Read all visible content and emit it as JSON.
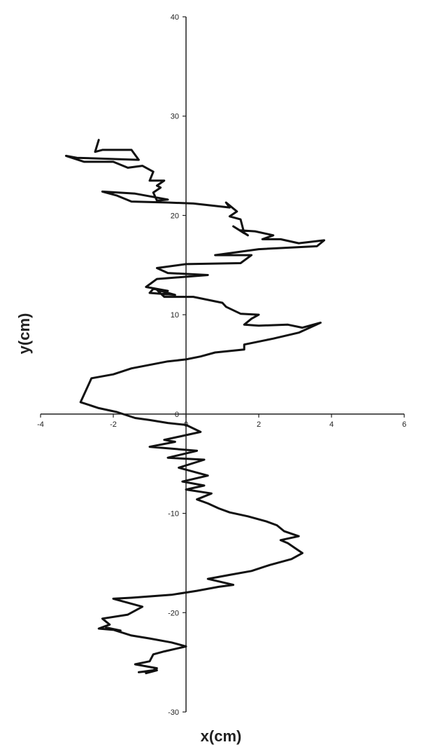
{
  "chart_data": {
    "type": "line",
    "title": "",
    "xlabel": "x(cm)",
    "ylabel": "y(cm)",
    "xlim": [
      -4,
      6
    ],
    "ylim": [
      -30,
      40
    ],
    "x_ticks": [
      -4,
      -2,
      0,
      2,
      4,
      6
    ],
    "y_ticks": [
      -30,
      -20,
      -10,
      0,
      10,
      20,
      30,
      40
    ],
    "x_tick_labels": [
      "-4",
      "-2",
      "0",
      "2",
      "4",
      "6"
    ],
    "y_tick_labels": [
      "-30",
      "-20",
      "-10",
      "0",
      "10",
      "20",
      "30",
      "40"
    ],
    "grid": false,
    "legend": "none",
    "line_color": "#111111",
    "series": [
      {
        "x": [
          -2.4,
          -2.5,
          -2.3,
          -1.5,
          -1.3,
          -3.0,
          -3.3,
          -2.8,
          -2.0,
          -1.6,
          -1.2,
          -0.9,
          -1.0,
          -0.6,
          -0.8,
          -0.7,
          -0.9,
          -0.8,
          -0.5,
          -1.4,
          -2.3,
          -1.9,
          -1.5,
          -0.5,
          0.2,
          1.2,
          1.1,
          1.4,
          1.2,
          1.5,
          1.6,
          1.3,
          1.7,
          1.5,
          1.9,
          2.4,
          2.1,
          2.6,
          3.1,
          3.8,
          3.6,
          2.0,
          0.8,
          1.8,
          1.5,
          0.0,
          -0.8,
          -0.5,
          0.6,
          -0.8,
          -1.1,
          -0.5,
          -0.9,
          -1.0,
          -0.3,
          -0.8,
          -0.6,
          0.2,
          1.0,
          1.1,
          1.5,
          2.0,
          1.8,
          1.6,
          2.0,
          2.8,
          3.2,
          3.7,
          3.1,
          2.4,
          1.6,
          1.6,
          0.8,
          0.4,
          0.0,
          -0.5,
          -1.5,
          -2.0,
          -2.6,
          -2.9,
          -2.4,
          -1.9,
          -1.4,
          -1.0,
          -0.5,
          0.0,
          0.4,
          -0.6,
          -0.3,
          -1.0,
          0.3,
          -0.5,
          0.5,
          -0.2,
          0.6,
          -0.1,
          0.5,
          0.0,
          0.7,
          0.3,
          0.6,
          0.9,
          1.2,
          1.7,
          2.2,
          2.5,
          2.7,
          3.1,
          2.6,
          2.8,
          3.0,
          3.2,
          2.9,
          2.3,
          1.8,
          1.2,
          0.6,
          1.3,
          0.9,
          0.3,
          -0.4,
          -1.5,
          -2.0,
          -1.2,
          -1.6,
          -2.3,
          -2.1,
          -2.4,
          -1.8,
          -2.2,
          -1.5,
          -1.0,
          -0.4,
          0.0,
          -0.6,
          -0.9,
          -1.0,
          -1.4,
          -0.8,
          -0.9,
          -1.3,
          -0.8,
          -1.1
        ],
        "y": [
          27.6,
          26.4,
          26.6,
          26.6,
          25.6,
          25.8,
          26.0,
          25.4,
          25.4,
          24.8,
          25.0,
          24.4,
          23.5,
          23.5,
          23.0,
          22.8,
          22.3,
          21.5,
          21.6,
          22.2,
          22.4,
          22.0,
          21.4,
          21.3,
          21.2,
          20.8,
          21.3,
          20.4,
          19.9,
          19.6,
          18.2,
          18.9,
          18.0,
          18.5,
          18.4,
          18.0,
          17.6,
          17.6,
          17.2,
          17.5,
          16.9,
          16.6,
          16.0,
          16.0,
          15.2,
          15.1,
          14.7,
          14.2,
          14.0,
          13.6,
          12.8,
          12.4,
          12.6,
          12.2,
          12.0,
          12.5,
          11.8,
          11.8,
          11.2,
          10.8,
          10.1,
          10.0,
          9.6,
          9.0,
          8.9,
          9.0,
          8.7,
          9.2,
          8.2,
          7.6,
          7.0,
          6.5,
          6.2,
          5.8,
          5.5,
          5.3,
          4.6,
          4.0,
          3.6,
          1.2,
          0.6,
          0.2,
          -0.4,
          -0.6,
          -0.9,
          -1.1,
          -1.8,
          -2.6,
          -2.8,
          -3.3,
          -3.7,
          -4.4,
          -4.6,
          -5.4,
          -6.2,
          -6.8,
          -7.2,
          -7.6,
          -8.0,
          -8.6,
          -9.0,
          -9.5,
          -9.9,
          -10.3,
          -10.8,
          -11.2,
          -11.8,
          -12.3,
          -12.7,
          -13.0,
          -13.5,
          -14.0,
          -14.6,
          -15.2,
          -15.8,
          -16.2,
          -16.6,
          -17.2,
          -17.4,
          -17.8,
          -18.2,
          -18.5,
          -18.6,
          -19.4,
          -20.2,
          -20.6,
          -21.2,
          -21.6,
          -21.8,
          -21.5,
          -22.3,
          -22.6,
          -23.0,
          -23.4,
          -23.9,
          -24.2,
          -24.9,
          -25.2,
          -25.6,
          -25.8,
          -26.0,
          -25.8,
          -26.1
        ]
      }
    ]
  }
}
